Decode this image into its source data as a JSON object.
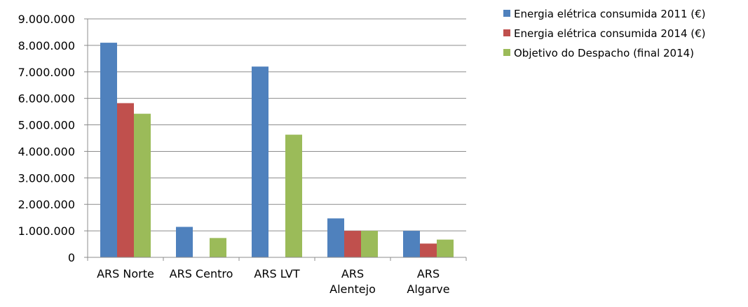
{
  "chart_data": {
    "type": "bar",
    "title": "",
    "xlabel": "",
    "ylabel": "",
    "categories": [
      [
        "ARS Norte"
      ],
      [
        "ARS Centro"
      ],
      [
        "ARS LVT"
      ],
      [
        "ARS",
        "Alentejo"
      ],
      [
        "ARS",
        "Algarve"
      ]
    ],
    "ylim": [
      0,
      9000000
    ],
    "yticks": [
      "0",
      "1.000.000",
      "2.000.000",
      "3.000.000",
      "4.000.000",
      "5.000.000",
      "6.000.000",
      "7.000.000",
      "8.000.000",
      "9.000.000"
    ],
    "grid": true,
    "legend_position": "top-right",
    "series": [
      {
        "name": "Energia elétrica consumida 2011 (€)",
        "color": "#4f81bd",
        "values": [
          8100000,
          1150000,
          7200000,
          1470000,
          1000000
        ]
      },
      {
        "name": "Energia elétrica consumida 2014 (€)",
        "color": "#c0504d",
        "values": [
          5820000,
          null,
          null,
          1000000,
          520000
        ]
      },
      {
        "name": "Objetivo do Despacho (final 2014)",
        "color": "#9bbb59",
        "values": [
          5420000,
          730000,
          4630000,
          1000000,
          670000
        ]
      }
    ]
  }
}
